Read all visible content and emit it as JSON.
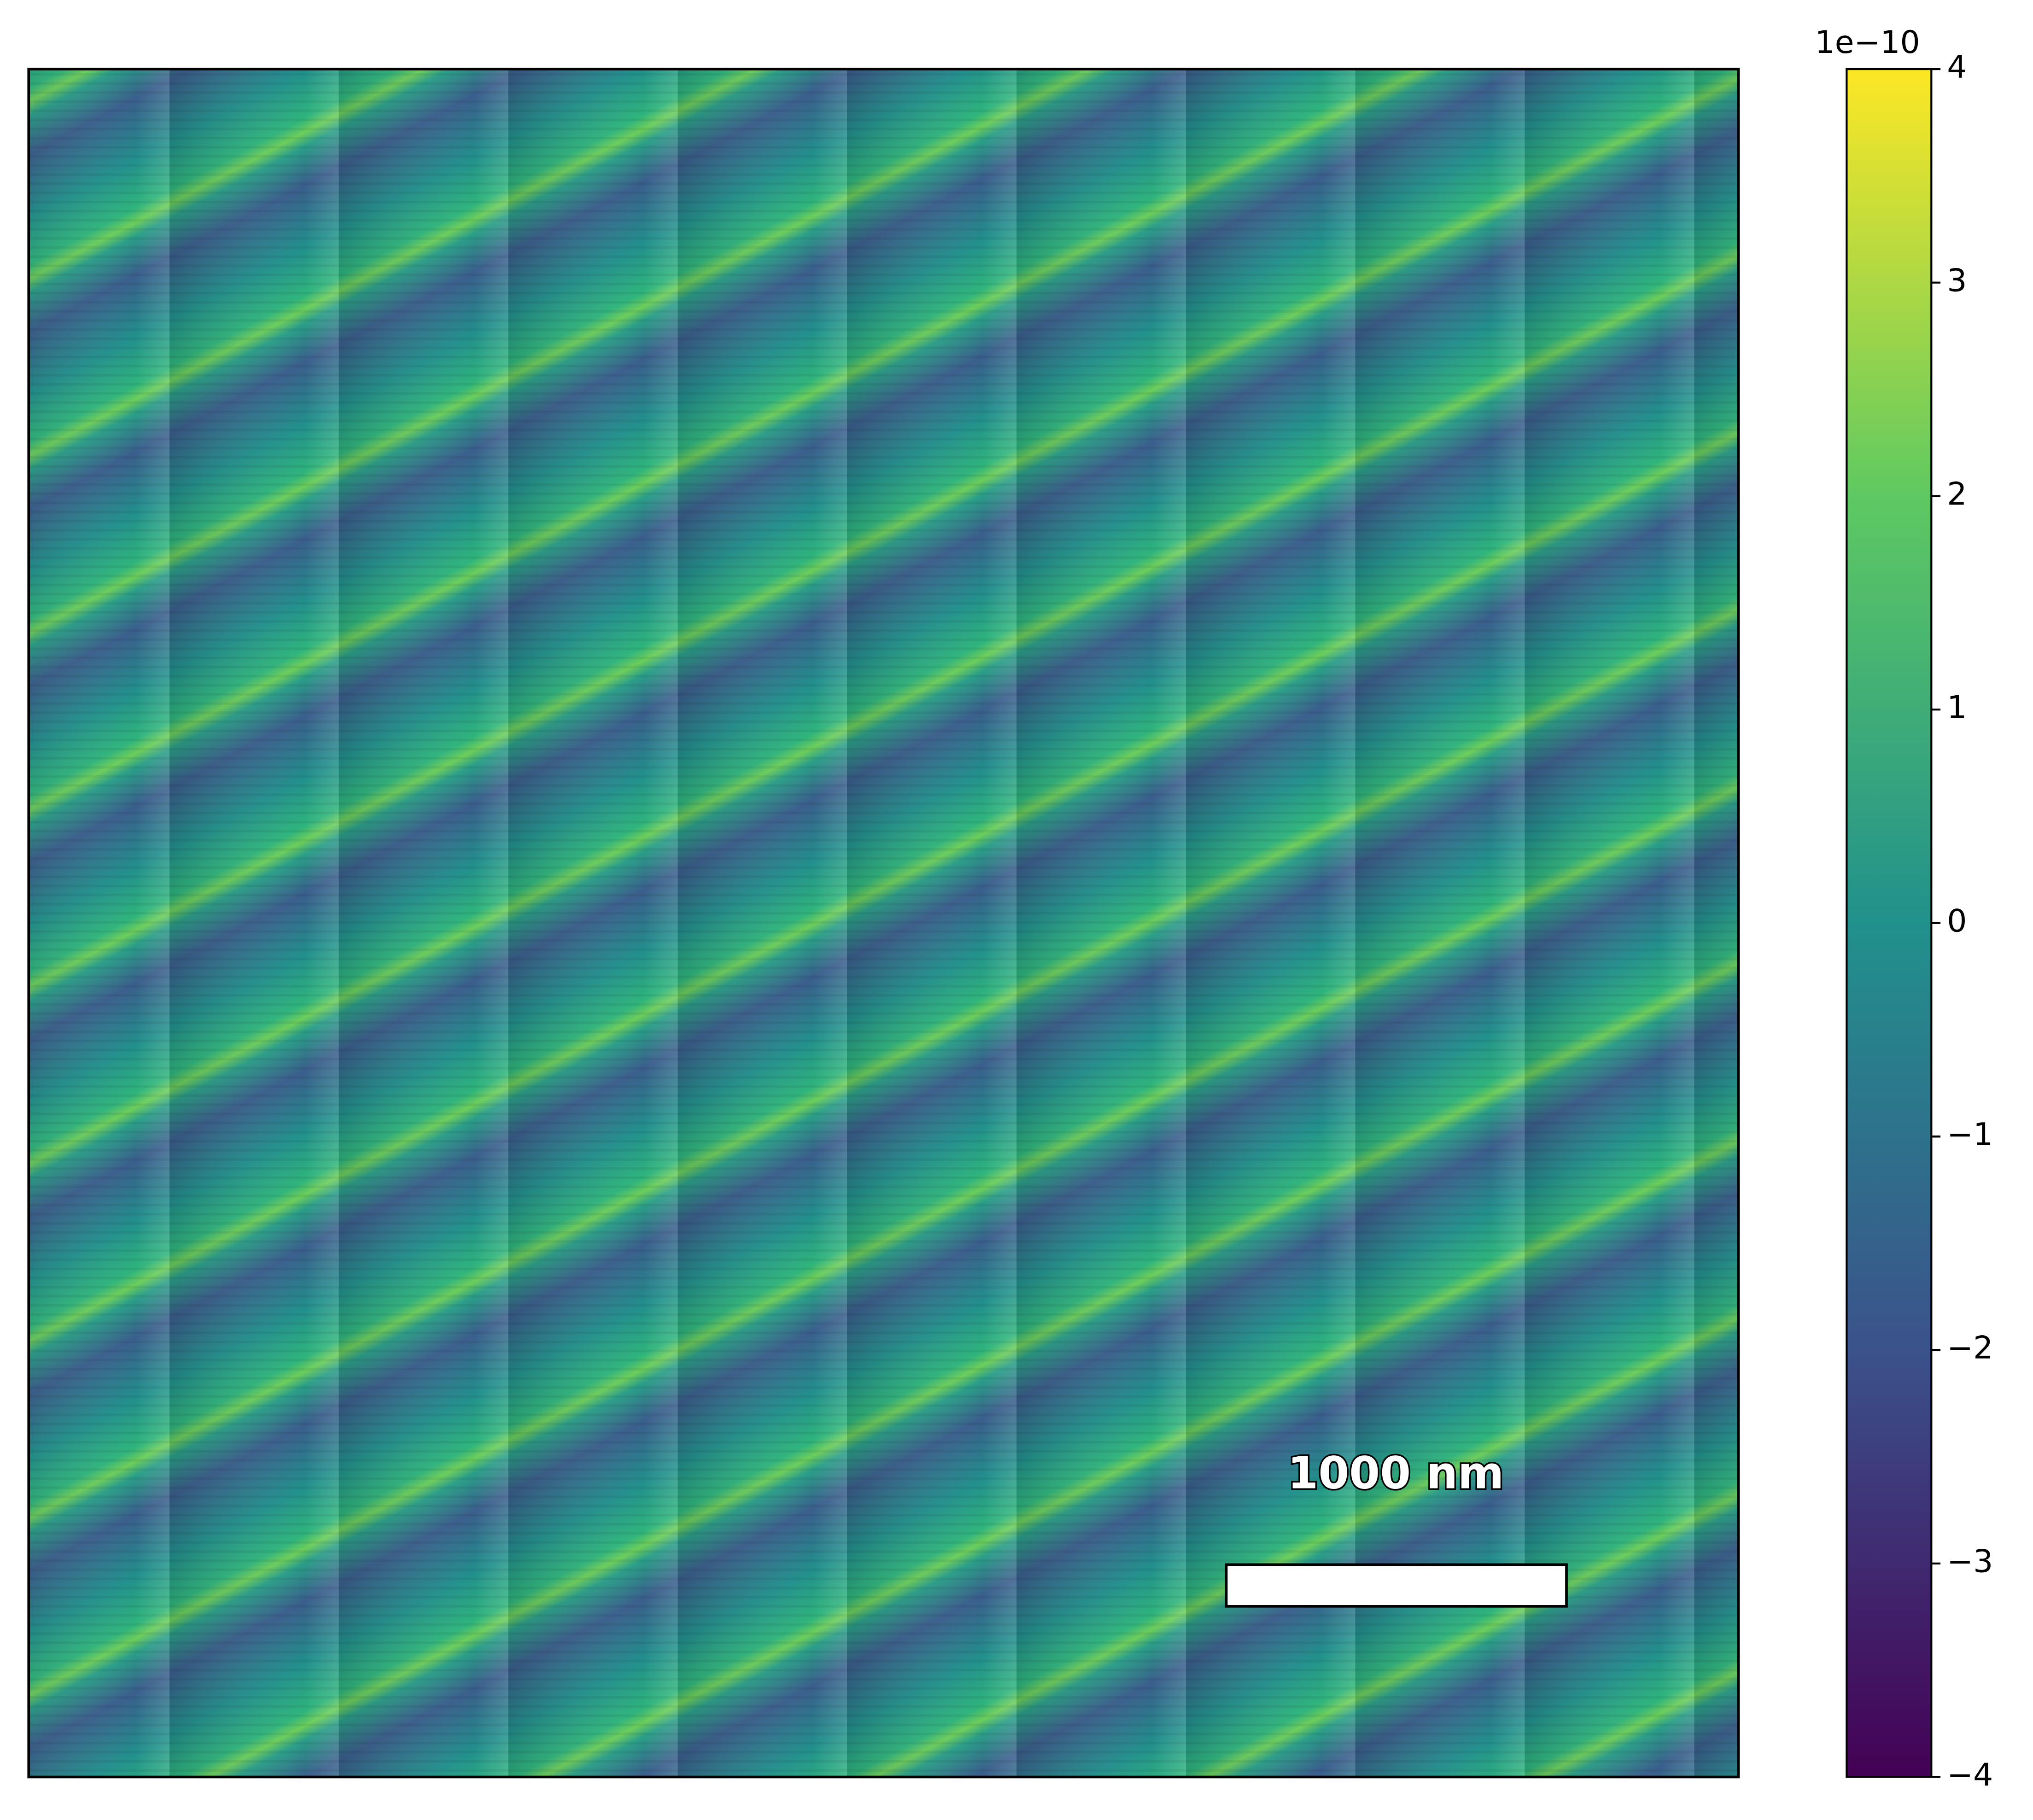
{
  "chart_data": {
    "type": "image",
    "colorbar": {
      "clim": [
        -4,
        4
      ],
      "ticks": [
        {
          "value": -4,
          "label": "−4"
        },
        {
          "value": -3,
          "label": "−3"
        },
        {
          "value": -2,
          "label": "−2"
        },
        {
          "value": -1,
          "label": "−1"
        },
        0,
        1,
        2,
        3,
        4
      ],
      "offset_label": "1e−10",
      "colormap": [
        "#440154",
        "#3b528b",
        "#21918c",
        "#5ec962",
        "#fde725"
      ]
    },
    "scale_bar": {
      "label": "1000 nm"
    }
  }
}
